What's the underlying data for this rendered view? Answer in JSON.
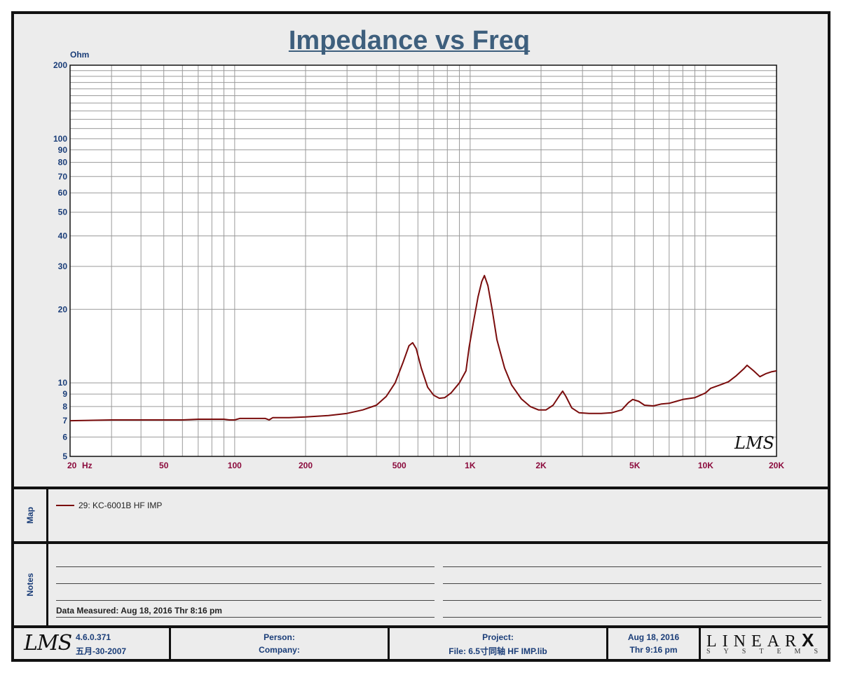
{
  "chart_data": {
    "type": "line",
    "title": "Impedance vs Freq",
    "ylabel": "Ohm",
    "xlabel": "Hz",
    "x_scale": "log",
    "y_scale": "log",
    "xlim": [
      20,
      20000
    ],
    "ylim": [
      5,
      200
    ],
    "x_ticks": [
      {
        "v": 20,
        "label": "20"
      },
      {
        "v": 50,
        "label": "50"
      },
      {
        "v": 100,
        "label": "100"
      },
      {
        "v": 200,
        "label": "200"
      },
      {
        "v": 500,
        "label": "500"
      },
      {
        "v": 1000,
        "label": "1K"
      },
      {
        "v": 2000,
        "label": "2K"
      },
      {
        "v": 5000,
        "label": "5K"
      },
      {
        "v": 10000,
        "label": "10K"
      },
      {
        "v": 20000,
        "label": "20K"
      }
    ],
    "y_ticks": [
      {
        "v": 5,
        "label": "5"
      },
      {
        "v": 6,
        "label": "6"
      },
      {
        "v": 7,
        "label": "7"
      },
      {
        "v": 8,
        "label": "8"
      },
      {
        "v": 9,
        "label": "9"
      },
      {
        "v": 10,
        "label": "10"
      },
      {
        "v": 20,
        "label": "20"
      },
      {
        "v": 30,
        "label": "30"
      },
      {
        "v": 40,
        "label": "40"
      },
      {
        "v": 50,
        "label": "50"
      },
      {
        "v": 60,
        "label": "60"
      },
      {
        "v": 70,
        "label": "70"
      },
      {
        "v": 80,
        "label": "80"
      },
      {
        "v": 90,
        "label": "90"
      },
      {
        "v": 100,
        "label": "100"
      },
      {
        "v": 200,
        "label": "200"
      }
    ],
    "grid": true,
    "series": [
      {
        "name": "29: KC-6001B  HF  IMP",
        "color": "#7a0c0c",
        "points": [
          [
            20,
            7.0
          ],
          [
            30,
            7.05
          ],
          [
            40,
            7.05
          ],
          [
            50,
            7.05
          ],
          [
            60,
            7.05
          ],
          [
            70,
            7.1
          ],
          [
            80,
            7.1
          ],
          [
            90,
            7.1
          ],
          [
            95,
            7.05
          ],
          [
            100,
            7.05
          ],
          [
            105,
            7.15
          ],
          [
            120,
            7.15
          ],
          [
            135,
            7.15
          ],
          [
            140,
            7.05
          ],
          [
            145,
            7.2
          ],
          [
            170,
            7.2
          ],
          [
            200,
            7.25
          ],
          [
            250,
            7.35
          ],
          [
            300,
            7.5
          ],
          [
            350,
            7.75
          ],
          [
            400,
            8.1
          ],
          [
            440,
            8.8
          ],
          [
            480,
            10.0
          ],
          [
            520,
            12.2
          ],
          [
            550,
            14.2
          ],
          [
            570,
            14.6
          ],
          [
            590,
            13.8
          ],
          [
            620,
            11.5
          ],
          [
            660,
            9.6
          ],
          [
            700,
            8.9
          ],
          [
            740,
            8.65
          ],
          [
            780,
            8.7
          ],
          [
            830,
            9.1
          ],
          [
            900,
            10.0
          ],
          [
            960,
            11.2
          ],
          [
            990,
            14.0
          ],
          [
            1030,
            17.5
          ],
          [
            1080,
            22.5
          ],
          [
            1120,
            26.0
          ],
          [
            1150,
            27.5
          ],
          [
            1190,
            25.0
          ],
          [
            1240,
            20.0
          ],
          [
            1300,
            15.0
          ],
          [
            1400,
            11.5
          ],
          [
            1500,
            9.8
          ],
          [
            1650,
            8.6
          ],
          [
            1800,
            8.0
          ],
          [
            1950,
            7.75
          ],
          [
            2100,
            7.75
          ],
          [
            2250,
            8.1
          ],
          [
            2400,
            8.9
          ],
          [
            2470,
            9.25
          ],
          [
            2550,
            8.8
          ],
          [
            2700,
            7.9
          ],
          [
            2900,
            7.55
          ],
          [
            3200,
            7.5
          ],
          [
            3600,
            7.5
          ],
          [
            4000,
            7.55
          ],
          [
            4400,
            7.75
          ],
          [
            4700,
            8.3
          ],
          [
            4900,
            8.55
          ],
          [
            5200,
            8.4
          ],
          [
            5500,
            8.1
          ],
          [
            6000,
            8.05
          ],
          [
            6500,
            8.2
          ],
          [
            7000,
            8.25
          ],
          [
            7500,
            8.4
          ],
          [
            8000,
            8.55
          ],
          [
            9000,
            8.7
          ],
          [
            10000,
            9.1
          ],
          [
            10500,
            9.5
          ],
          [
            11500,
            9.8
          ],
          [
            12500,
            10.1
          ],
          [
            13500,
            10.7
          ],
          [
            14500,
            11.4
          ],
          [
            15000,
            11.8
          ],
          [
            16000,
            11.2
          ],
          [
            17000,
            10.6
          ],
          [
            18000,
            10.9
          ],
          [
            19000,
            11.1
          ],
          [
            20000,
            11.2
          ]
        ]
      }
    ]
  },
  "legend": {
    "label": "29: KC-6001B  HF  IMP"
  },
  "map_tab": "Map",
  "notes_tab": "Notes",
  "notes": {
    "data_measured": "Data Measured: Aug 18, 2016  Thr  8:16 pm"
  },
  "footer": {
    "version": "4.6.0.371",
    "build_date": "五月-30-2007",
    "person": "Person:",
    "company": "Company:",
    "project": "Project:",
    "file": "File: 6.5寸同轴 HF IMP.lib",
    "date": "Aug 18, 2016",
    "time": "Thr  9:16 pm",
    "logo_left": "LMS",
    "logo_right": "LINEAR",
    "logo_right_x": "X",
    "logo_right_sub": "SYSTEMS"
  },
  "watermark": "LMS"
}
